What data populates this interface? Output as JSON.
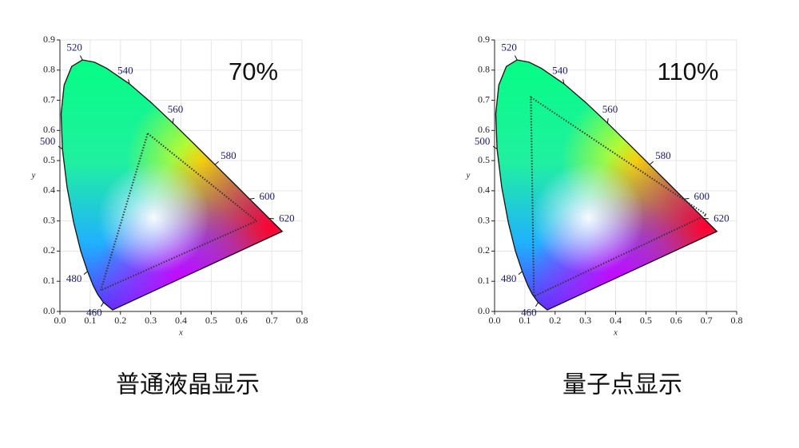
{
  "chart_data": [
    {
      "type": "chromaticity",
      "percent_label": "70%",
      "caption": "普通液晶显示",
      "x_label": "x",
      "y_label": "y",
      "xlim": [
        0,
        0.8
      ],
      "ylim": [
        0,
        0.9
      ],
      "xticks": [
        {
          "value": 0,
          "label": "0.0"
        },
        0.1,
        0.2,
        0.3,
        0.4,
        0.5,
        0.6,
        0.7,
        0.8
      ],
      "yticks": [
        {
          "value": 0,
          "label": "0.0"
        },
        0.1,
        0.2,
        0.3,
        0.4,
        0.5,
        0.6,
        0.7,
        0.8,
        0.9
      ],
      "wavelength_labels": [
        460,
        480,
        500,
        520,
        540,
        560,
        580,
        600,
        620
      ],
      "gamut": {
        "x": [
          0.29,
          0.65,
          0.135
        ],
        "y": [
          0.59,
          0.3,
          0.07
        ]
      },
      "gamut_color": "#333333",
      "grid": true
    },
    {
      "type": "chromaticity",
      "percent_label": "110%",
      "caption": "量子点显示",
      "x_label": "x",
      "y_label": "y",
      "xlim": [
        0,
        0.8
      ],
      "ylim": [
        0,
        0.9
      ],
      "xticks": [
        {
          "value": 0,
          "label": "0.0"
        },
        0.1,
        0.2,
        0.3,
        0.4,
        0.5,
        0.6,
        0.7,
        0.8
      ],
      "yticks": [
        {
          "value": 0,
          "label": "0.0"
        },
        0.1,
        0.2,
        0.3,
        0.4,
        0.5,
        0.6,
        0.7,
        0.8,
        0.9
      ],
      "wavelength_labels": [
        460,
        480,
        500,
        520,
        540,
        560,
        580,
        600,
        620
      ],
      "gamut": {
        "x": [
          0.12,
          0.7,
          0.13
        ],
        "y": [
          0.71,
          0.32,
          0.05
        ]
      },
      "gamut_color": "#333333",
      "grid": true
    }
  ]
}
